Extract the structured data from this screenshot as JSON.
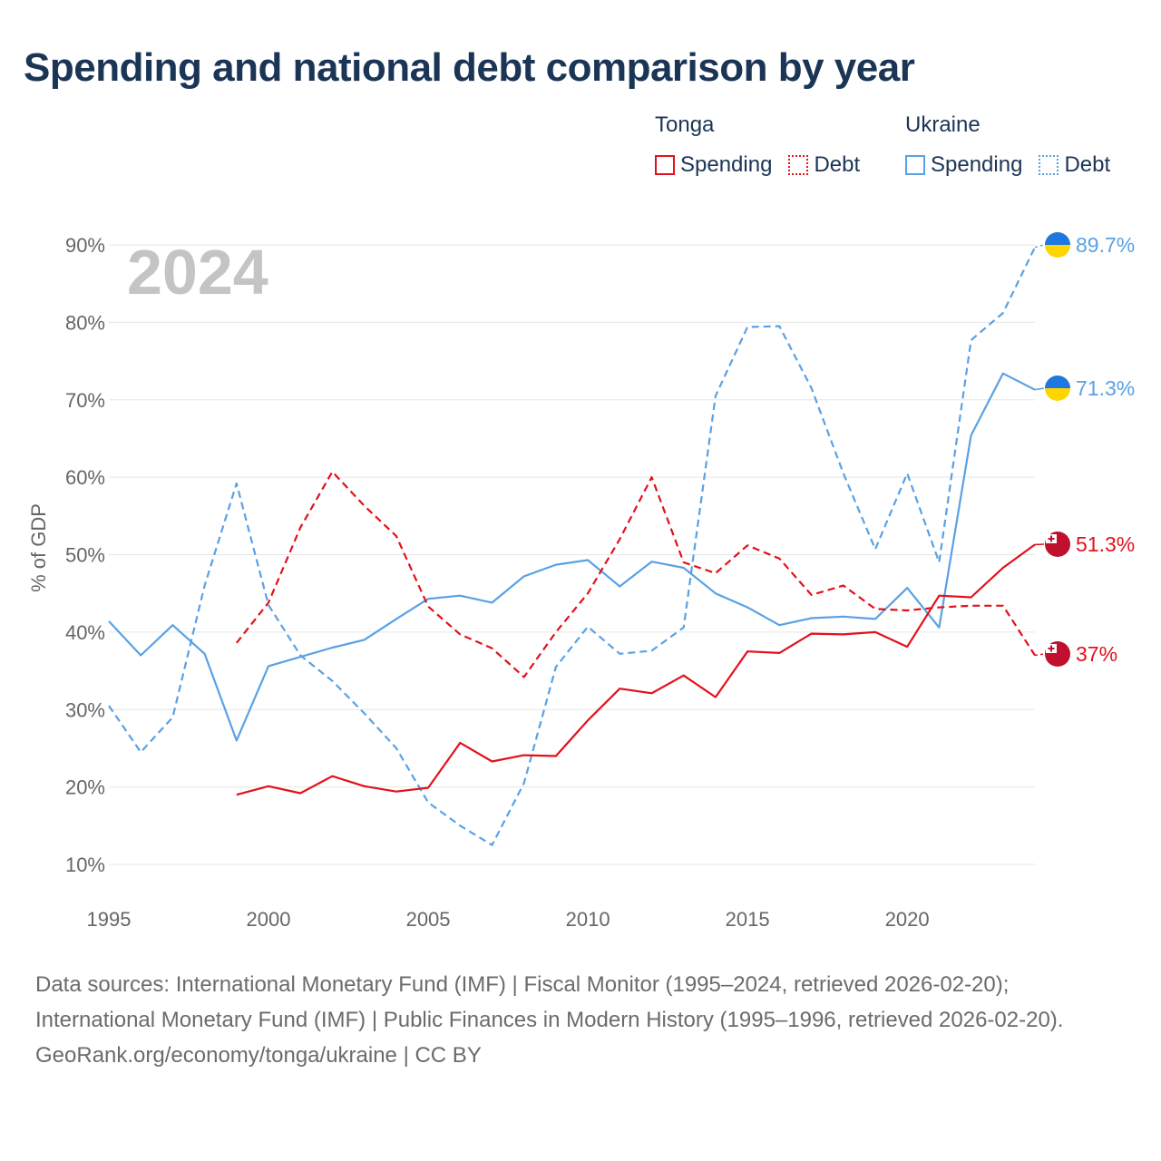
{
  "title": "Spending and national debt comparison by year",
  "legend": {
    "tonga": {
      "name": "Tonga",
      "spending": "Spending",
      "debt": "Debt"
    },
    "ukraine": {
      "name": "Ukraine",
      "spending": "Spending",
      "debt": "Debt"
    }
  },
  "colors": {
    "tonga": "#e3101b",
    "ukraine": "#5aa1e3",
    "title": "#1b3556"
  },
  "footer": {
    "sources": "Data sources: International Monetary Fund (IMF) | Fiscal Monitor (1995–2024, retrieved 2026-02-20); International Monetary Fund (IMF) | Public Finances in Modern History (1995–1996, retrieved 2026-02-20).",
    "credit": "GeoRank.org/economy/tonga/ukraine | CC BY"
  },
  "chart_data": {
    "type": "line",
    "title": "Spending and national debt comparison by year",
    "year_label": "2024",
    "ylabel": "% of GDP",
    "xlabel": "",
    "xlim": [
      1995,
      2024
    ],
    "ylim": [
      10,
      90
    ],
    "grid": true,
    "x_ticks": [
      "1995",
      "2000",
      "2005",
      "2010",
      "2015",
      "2020"
    ],
    "y_ticks": [
      "10%",
      "20%",
      "30%",
      "40%",
      "50%",
      "60%",
      "70%",
      "80%",
      "90%"
    ],
    "series": [
      {
        "name": "Ukraine Debt",
        "country": "Ukraine",
        "style": "dashed",
        "color": "#5aa1e3",
        "end_label": "89.7%",
        "x": [
          1995,
          1996,
          1997,
          1998,
          1999,
          2000,
          2001,
          2002,
          2003,
          2004,
          2005,
          2006,
          2007,
          2008,
          2009,
          2010,
          2011,
          2012,
          2013,
          2014,
          2015,
          2016,
          2017,
          2018,
          2019,
          2020,
          2021,
          2022,
          2023,
          2024
        ],
        "values": [
          30.5,
          24.5,
          29,
          46,
          59.2,
          43.5,
          37,
          33.7,
          29.5,
          25,
          18,
          15,
          12.5,
          20.5,
          35.5,
          40.7,
          37.2,
          37.6,
          40.6,
          70.5,
          79.4,
          79.5,
          71.5,
          60.5,
          50.7,
          60.5,
          49,
          77.7,
          81.2,
          89.7
        ]
      },
      {
        "name": "Ukraine Spending",
        "country": "Ukraine",
        "style": "solid",
        "color": "#5aa1e3",
        "end_label": "71.3%",
        "x": [
          1995,
          1996,
          1997,
          1998,
          1999,
          2000,
          2001,
          2002,
          2003,
          2004,
          2005,
          2006,
          2007,
          2008,
          2009,
          2010,
          2011,
          2012,
          2013,
          2014,
          2015,
          2016,
          2017,
          2018,
          2019,
          2020,
          2021,
          2022,
          2023,
          2024
        ],
        "values": [
          41.4,
          37,
          40.9,
          37.2,
          26,
          35.6,
          36.8,
          38,
          39,
          41.7,
          44.3,
          44.7,
          43.8,
          47.2,
          48.7,
          49.3,
          45.9,
          49.1,
          48.3,
          45,
          43.2,
          40.9,
          41.8,
          42,
          41.7,
          45.7,
          40.6,
          65.4,
          73.4,
          71.3
        ]
      },
      {
        "name": "Tonga Spending",
        "country": "Tonga",
        "style": "solid",
        "color": "#e3101b",
        "end_label": "51.3%",
        "x": [
          1999,
          2000,
          2001,
          2002,
          2003,
          2004,
          2005,
          2006,
          2007,
          2008,
          2009,
          2010,
          2011,
          2012,
          2013,
          2014,
          2015,
          2016,
          2017,
          2018,
          2019,
          2020,
          2021,
          2022,
          2023,
          2024
        ],
        "values": [
          19,
          20.1,
          19.2,
          21.4,
          20.1,
          19.4,
          19.9,
          25.7,
          23.3,
          24.1,
          24,
          28.6,
          32.7,
          32.1,
          34.4,
          31.6,
          37.5,
          37.3,
          39.8,
          39.7,
          40,
          38.1,
          44.7,
          44.5,
          48.3,
          51.3
        ]
      },
      {
        "name": "Tonga Debt",
        "country": "Tonga",
        "style": "dashed",
        "color": "#e3101b",
        "end_label": "37%",
        "x": [
          1999,
          2000,
          2001,
          2002,
          2003,
          2004,
          2005,
          2006,
          2007,
          2008,
          2009,
          2010,
          2011,
          2012,
          2013,
          2014,
          2015,
          2016,
          2017,
          2018,
          2019,
          2020,
          2021,
          2022,
          2023,
          2024
        ],
        "values": [
          38.6,
          43.8,
          53.5,
          60.7,
          56.3,
          52.4,
          43.3,
          39.7,
          37.9,
          34.2,
          40,
          45,
          52,
          60,
          49,
          47.6,
          51.2,
          49.5,
          44.8,
          46,
          43,
          42.8,
          43.2,
          43.4,
          43.4,
          37
        ]
      }
    ]
  }
}
